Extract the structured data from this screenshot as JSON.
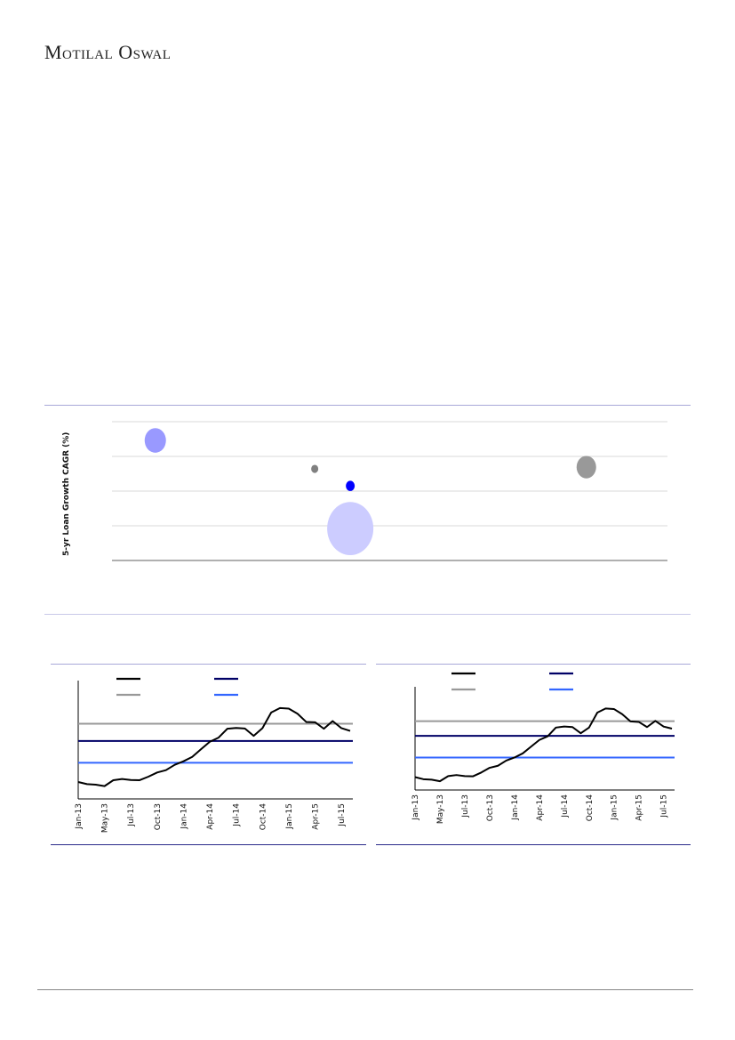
{
  "header": {
    "logo_text": "Motilal Oswal"
  },
  "colors": {
    "rule_light": "#a8a8d8",
    "rule_dark": "#2a2a8a",
    "footer_rule": "#888888"
  },
  "chart_data": [
    {
      "type": "scatter",
      "subtype": "bubble",
      "title": "",
      "xlabel": "",
      "ylabel": "5-yr Loan Growth CAGR (%)",
      "xlim": [
        0,
        100
      ],
      "ylim": [
        0,
        4
      ],
      "grid": true,
      "points": [
        {
          "x": 7.8,
          "y": 3.46,
          "size": 12,
          "color": "#9999ff"
        },
        {
          "x": 36.5,
          "y": 2.64,
          "size": 4,
          "color": "#808080"
        },
        {
          "x": 42.9,
          "y": 2.15,
          "size": 5,
          "color": "#0000ff"
        },
        {
          "x": 42.9,
          "y": 0.92,
          "size": 26,
          "color": "#ccccff"
        },
        {
          "x": 85.4,
          "y": 2.69,
          "size": 11,
          "color": "#999999"
        }
      ]
    },
    {
      "type": "line",
      "title": "",
      "ylim": [
        0,
        100
      ],
      "x_tick_labels": [
        "Jan-13",
        "May-13",
        "Jul-13",
        "Oct-13",
        "Jan-14",
        "Apr-14",
        "Jul-14",
        "Oct-14",
        "Jan-15",
        "Apr-15",
        "Jul-15"
      ],
      "x_tick_index": [
        0,
        3,
        6,
        9,
        12,
        15,
        18,
        21,
        24,
        27,
        30
      ],
      "series": [
        {
          "color": "#000000",
          "values": [
            14.3,
            12.5,
            12,
            10.8,
            15.8,
            16.8,
            16,
            15.8,
            18.8,
            22.3,
            24.3,
            28.8,
            31.8,
            35.5,
            42,
            48.3,
            51.8,
            59.3,
            60,
            59.5,
            53.3,
            59.8,
            73,
            76.8,
            76.3,
            72,
            65,
            64.8,
            59.3,
            65.8,
            59.8,
            57.5
          ]
        },
        {
          "color": "#999999",
          "constant": 63.5
        },
        {
          "color": "#000066",
          "constant": 49
        },
        {
          "color": "#3366ff",
          "constant": 30.5
        }
      ]
    },
    {
      "type": "line",
      "title": "",
      "ylim": [
        0,
        100
      ],
      "x_tick_labels": [
        "Jan-13",
        "May-13",
        "Jul-13",
        "Oct-13",
        "Jan-14",
        "Apr-14",
        "Jul-14",
        "Oct-14",
        "Jan-15",
        "Apr-15",
        "Jul-15"
      ],
      "x_tick_index": [
        0,
        3,
        6,
        9,
        12,
        15,
        18,
        21,
        24,
        27,
        30
      ],
      "series": [
        {
          "color": "#000000",
          "values": [
            12.5,
            10.5,
            10,
            8.5,
            13.5,
            14.5,
            13.5,
            13.3,
            17,
            21.5,
            23.5,
            28.5,
            31.5,
            35.5,
            42,
            48.5,
            52,
            60.5,
            61.5,
            61,
            55,
            60.5,
            75,
            79,
            78.5,
            73.5,
            66.5,
            66,
            61,
            67,
            61.5,
            59.5
          ]
        },
        {
          "color": "#999999",
          "constant": 66.7
        },
        {
          "color": "#000066",
          "constant": 52.5
        },
        {
          "color": "#3366ff",
          "constant": 31.5
        }
      ]
    }
  ]
}
